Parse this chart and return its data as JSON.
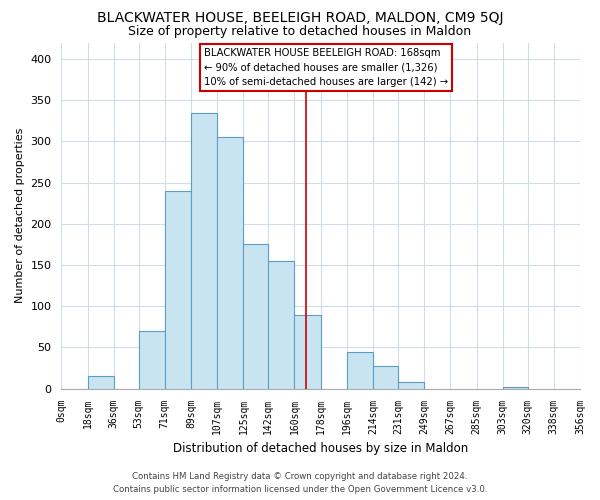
{
  "title": "BLACKWATER HOUSE, BEELEIGH ROAD, MALDON, CM9 5QJ",
  "subtitle": "Size of property relative to detached houses in Maldon",
  "xlabel": "Distribution of detached houses by size in Maldon",
  "ylabel": "Number of detached properties",
  "bar_values": [
    0,
    15,
    0,
    70,
    240,
    335,
    305,
    175,
    155,
    90,
    0,
    45,
    27,
    8,
    0,
    0,
    0,
    2,
    0,
    0
  ],
  "bin_edges": [
    0,
    18,
    36,
    53,
    71,
    89,
    107,
    125,
    142,
    160,
    178,
    196,
    214,
    231,
    249,
    267,
    285,
    303,
    320,
    338,
    356
  ],
  "tick_labels": [
    "0sqm",
    "18sqm",
    "36sqm",
    "53sqm",
    "71sqm",
    "89sqm",
    "107sqm",
    "125sqm",
    "142sqm",
    "160sqm",
    "178sqm",
    "196sqm",
    "214sqm",
    "231sqm",
    "249sqm",
    "267sqm",
    "285sqm",
    "303sqm",
    "320sqm",
    "338sqm",
    "356sqm"
  ],
  "bar_color": "#c8e4f0",
  "bar_edge_color": "#5b9dc9",
  "vline_x": 168,
  "vline_color": "#cc0000",
  "ylim": [
    0,
    420
  ],
  "yticks": [
    0,
    50,
    100,
    150,
    200,
    250,
    300,
    350,
    400
  ],
  "annotation_title": "BLACKWATER HOUSE BEELEIGH ROAD: 168sqm",
  "annotation_line1": "← 90% of detached houses are smaller (1,326)",
  "annotation_line2": "10% of semi-detached houses are larger (142) →",
  "footer1": "Contains HM Land Registry data © Crown copyright and database right 2024.",
  "footer2": "Contains public sector information licensed under the Open Government Licence v3.0.",
  "background_color": "#ffffff",
  "grid_color": "#d0dce8",
  "title_fontsize": 10,
  "subtitle_fontsize": 9,
  "axis_label_fontsize": 8.5,
  "tick_fontsize": 7,
  "ylabel_fontsize": 8
}
